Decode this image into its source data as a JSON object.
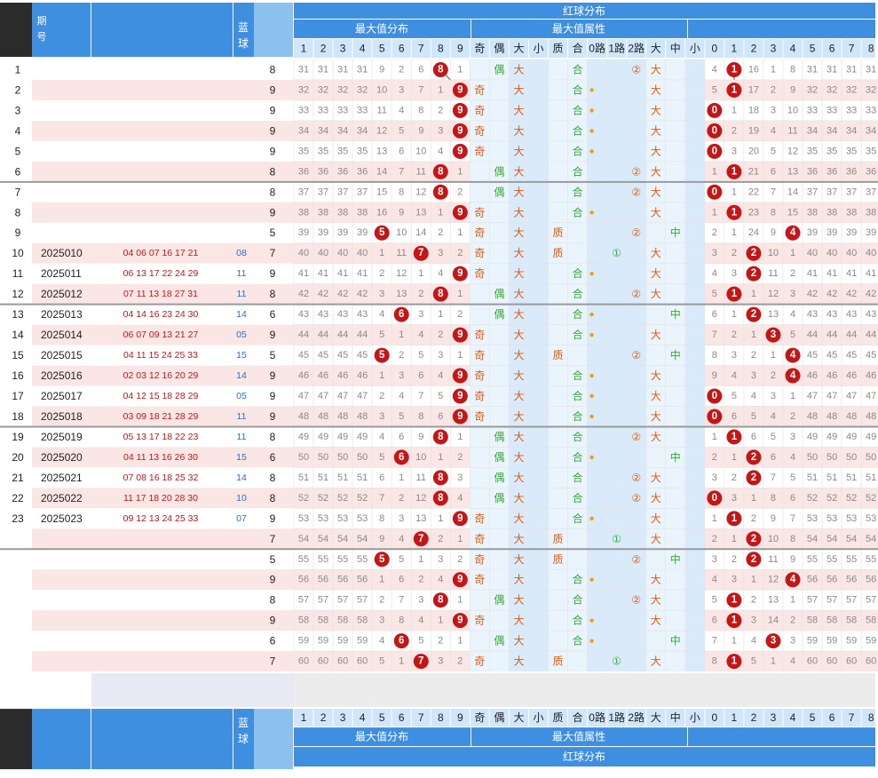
{
  "colors": {
    "header_dark": "#3f8fe0",
    "header_light": "#cfe6fb",
    "ball_red": "#c41616",
    "line_gray": "#8a8a8a",
    "odd_red": "#e05a10",
    "green": "#38a838"
  },
  "header": {
    "title": "红球分布",
    "groups": {
      "max_value": "最大值分布",
      "attributes": "最大值属性"
    },
    "blue_label": "蓝球",
    "period_label": "期号",
    "max_cols": [
      "1",
      "2",
      "3",
      "4",
      "5",
      "6",
      "7",
      "8",
      "9"
    ],
    "attr_cols": [
      "奇",
      "偶",
      "大",
      "小",
      "质",
      "合",
      "0路",
      "1路",
      "2路",
      "大",
      "中",
      "小"
    ],
    "dist_cols": [
      "0",
      "1",
      "2",
      "3",
      "4",
      "5",
      "6",
      "7",
      "8"
    ]
  },
  "attr_labels": {
    "odd": "奇",
    "even": "偶",
    "big": "大",
    "prime": "质",
    "composite": "合",
    "r1": "①",
    "r2": "②",
    "mid": "中"
  },
  "rows": [
    {
      "idx": "1",
      "period": "",
      "reds": "",
      "blue": "",
      "sum": "8",
      "miss": [
        31,
        31,
        31,
        31,
        9,
        2,
        6,
        8,
        1
      ],
      "max": 8,
      "attr": [
        0,
        1,
        1,
        0,
        0,
        1,
        0,
        0,
        1,
        1,
        0,
        0
      ],
      "dist": [
        4,
        1,
        16,
        1,
        8,
        31,
        31,
        31,
        31
      ],
      "dsel": 1
    },
    {
      "idx": "2",
      "period": "",
      "reds": "",
      "blue": "",
      "sum": "9",
      "miss": [
        32,
        32,
        32,
        32,
        10,
        3,
        7,
        1,
        9
      ],
      "max": 9,
      "attr": [
        1,
        0,
        1,
        0,
        0,
        1,
        1,
        0,
        0,
        1,
        0,
        0
      ],
      "dist": [
        5,
        1,
        17,
        2,
        9,
        32,
        32,
        32,
        32
      ],
      "dsel": 1
    },
    {
      "idx": "3",
      "period": "",
      "reds": "",
      "blue": "",
      "sum": "9",
      "miss": [
        33,
        33,
        33,
        33,
        11,
        4,
        8,
        2,
        9
      ],
      "max": 9,
      "attr": [
        1,
        0,
        1,
        0,
        0,
        1,
        1,
        0,
        0,
        1,
        0,
        0
      ],
      "dist": [
        0,
        1,
        18,
        3,
        10,
        33,
        33,
        33,
        33
      ],
      "dsel": 0
    },
    {
      "idx": "4",
      "period": "",
      "reds": "",
      "blue": "",
      "sum": "9",
      "miss": [
        34,
        34,
        34,
        34,
        12,
        5,
        9,
        3,
        9
      ],
      "max": 9,
      "attr": [
        1,
        0,
        1,
        0,
        0,
        1,
        1,
        0,
        0,
        1,
        0,
        0
      ],
      "dist": [
        0,
        2,
        19,
        4,
        11,
        34,
        34,
        34,
        34
      ],
      "dsel": 0
    },
    {
      "idx": "5",
      "period": "",
      "reds": "",
      "blue": "",
      "sum": "9",
      "miss": [
        35,
        35,
        35,
        35,
        13,
        6,
        10,
        4,
        9
      ],
      "max": 9,
      "attr": [
        1,
        0,
        1,
        0,
        0,
        1,
        1,
        0,
        0,
        1,
        0,
        0
      ],
      "dist": [
        0,
        3,
        20,
        5,
        12,
        35,
        35,
        35,
        35
      ],
      "dsel": 0
    },
    {
      "idx": "6",
      "period": "",
      "reds": "",
      "blue": "",
      "sum": "8",
      "miss": [
        36,
        36,
        36,
        36,
        14,
        7,
        11,
        8,
        1
      ],
      "max": 8,
      "attr": [
        0,
        1,
        1,
        0,
        0,
        1,
        0,
        0,
        1,
        1,
        0,
        0
      ],
      "dist": [
        1,
        1,
        21,
        6,
        13,
        36,
        36,
        36,
        36
      ],
      "dsel": 1
    },
    {
      "idx": "7",
      "period": "",
      "reds": "",
      "blue": "",
      "sum": "8",
      "miss": [
        37,
        37,
        37,
        37,
        15,
        8,
        12,
        8,
        2
      ],
      "max": 8,
      "attr": [
        0,
        1,
        1,
        0,
        0,
        1,
        0,
        0,
        1,
        1,
        0,
        0
      ],
      "dist": [
        0,
        1,
        22,
        7,
        14,
        37,
        37,
        37,
        37
      ],
      "dsel": 0
    },
    {
      "idx": "8",
      "period": "",
      "reds": "",
      "blue": "",
      "sum": "9",
      "miss": [
        38,
        38,
        38,
        38,
        16,
        9,
        13,
        1,
        9
      ],
      "max": 9,
      "attr": [
        1,
        0,
        1,
        0,
        0,
        1,
        1,
        0,
        0,
        1,
        0,
        0
      ],
      "dist": [
        1,
        1,
        23,
        8,
        15,
        38,
        38,
        38,
        38
      ],
      "dsel": 1
    },
    {
      "idx": "9",
      "period": "",
      "reds": "",
      "blue": "",
      "sum": "5",
      "miss": [
        39,
        39,
        39,
        39,
        5,
        10,
        14,
        2,
        1
      ],
      "max": 5,
      "attr": [
        1,
        0,
        1,
        0,
        1,
        0,
        0,
        0,
        1,
        0,
        1,
        0
      ],
      "dist": [
        2,
        1,
        24,
        9,
        4,
        39,
        39,
        39,
        39
      ],
      "dsel": 4
    },
    {
      "idx": "10",
      "period": "2025010",
      "reds": "04 06 07 16 17 21",
      "blue": "08",
      "sum": "7",
      "miss": [
        40,
        40,
        40,
        40,
        1,
        11,
        7,
        3,
        2
      ],
      "max": 7,
      "attr": [
        1,
        0,
        1,
        0,
        1,
        0,
        0,
        1,
        0,
        1,
        0,
        0
      ],
      "dist": [
        3,
        2,
        2,
        10,
        1,
        40,
        40,
        40,
        40
      ],
      "dsel": 2
    },
    {
      "idx": "11",
      "period": "2025011",
      "reds": "06 13 17 22 24 29",
      "blue": "11",
      "sum": "9",
      "miss": [
        41,
        41,
        41,
        41,
        2,
        12,
        1,
        4,
        9
      ],
      "max": 9,
      "attr": [
        1,
        0,
        1,
        0,
        0,
        1,
        1,
        0,
        0,
        1,
        0,
        0
      ],
      "dist": [
        4,
        3,
        2,
        11,
        2,
        41,
        41,
        41,
        41
      ],
      "dsel": 2
    },
    {
      "idx": "12",
      "period": "2025012",
      "reds": "07 11 13 18 27 31",
      "blue": "11",
      "sum": "8",
      "miss": [
        42,
        42,
        42,
        42,
        3,
        13,
        2,
        8,
        1
      ],
      "max": 8,
      "attr": [
        0,
        1,
        1,
        0,
        0,
        1,
        0,
        0,
        1,
        1,
        0,
        0
      ],
      "dist": [
        5,
        1,
        1,
        12,
        3,
        42,
        42,
        42,
        42
      ],
      "dsel": 1
    },
    {
      "idx": "13",
      "period": "2025013",
      "reds": "04 14 16 23 24 30",
      "blue": "14",
      "sum": "6",
      "miss": [
        43,
        43,
        43,
        43,
        4,
        6,
        3,
        1,
        2
      ],
      "max": 6,
      "attr": [
        0,
        1,
        1,
        0,
        0,
        1,
        1,
        0,
        0,
        0,
        1,
        0
      ],
      "dist": [
        6,
        1,
        2,
        13,
        4,
        43,
        43,
        43,
        43
      ],
      "dsel": 2
    },
    {
      "idx": "14",
      "period": "2025014",
      "reds": "06 07 09 13 21 27",
      "blue": "05",
      "sum": "9",
      "miss": [
        44,
        44,
        44,
        44,
        5,
        1,
        4,
        2,
        9
      ],
      "max": 9,
      "attr": [
        1,
        0,
        1,
        0,
        0,
        1,
        1,
        0,
        0,
        1,
        0,
        0
      ],
      "dist": [
        7,
        2,
        1,
        3,
        5,
        44,
        44,
        44,
        44
      ],
      "dsel": 3
    },
    {
      "idx": "15",
      "period": "2025015",
      "reds": "04 11 15 24 25 33",
      "blue": "15",
      "sum": "5",
      "miss": [
        45,
        45,
        45,
        45,
        5,
        2,
        5,
        3,
        1
      ],
      "max": 5,
      "attr": [
        1,
        0,
        1,
        0,
        1,
        0,
        0,
        0,
        1,
        0,
        1,
        0
      ],
      "dist": [
        8,
        3,
        2,
        1,
        4,
        45,
        45,
        45,
        45
      ],
      "dsel": 4
    },
    {
      "idx": "16",
      "period": "2025016",
      "reds": "02 03 12 16 20 29",
      "blue": "14",
      "sum": "9",
      "miss": [
        46,
        46,
        46,
        46,
        1,
        3,
        6,
        4,
        9
      ],
      "max": 9,
      "attr": [
        1,
        0,
        1,
        0,
        0,
        1,
        1,
        0,
        0,
        1,
        0,
        0
      ],
      "dist": [
        9,
        4,
        3,
        2,
        4,
        46,
        46,
        46,
        46
      ],
      "dsel": 4
    },
    {
      "idx": "17",
      "period": "2025017",
      "reds": "04 12 15 18 28 29",
      "blue": "05",
      "sum": "9",
      "miss": [
        47,
        47,
        47,
        47,
        2,
        4,
        7,
        5,
        9
      ],
      "max": 9,
      "attr": [
        1,
        0,
        1,
        0,
        0,
        1,
        1,
        0,
        0,
        1,
        0,
        0
      ],
      "dist": [
        0,
        5,
        4,
        3,
        1,
        47,
        47,
        47,
        47
      ],
      "dsel": 0
    },
    {
      "idx": "18",
      "period": "2025018",
      "reds": "03 09 18 21 28 29",
      "blue": "11",
      "sum": "9",
      "miss": [
        48,
        48,
        48,
        48,
        3,
        5,
        8,
        6,
        9
      ],
      "max": 9,
      "attr": [
        1,
        0,
        1,
        0,
        0,
        1,
        1,
        0,
        0,
        1,
        0,
        0
      ],
      "dist": [
        0,
        6,
        5,
        4,
        2,
        48,
        48,
        48,
        48
      ],
      "dsel": 0
    },
    {
      "idx": "19",
      "period": "2025019",
      "reds": "05 13 17 18 22 23",
      "blue": "11",
      "sum": "8",
      "miss": [
        49,
        49,
        49,
        49,
        4,
        6,
        9,
        8,
        1
      ],
      "max": 8,
      "attr": [
        0,
        1,
        1,
        0,
        0,
        1,
        0,
        0,
        1,
        1,
        0,
        0
      ],
      "dist": [
        1,
        1,
        6,
        5,
        3,
        49,
        49,
        49,
        49
      ],
      "dsel": 1
    },
    {
      "idx": "20",
      "period": "2025020",
      "reds": "04 11 13 16 26 30",
      "blue": "15",
      "sum": "6",
      "miss": [
        50,
        50,
        50,
        50,
        5,
        6,
        10,
        1,
        2
      ],
      "max": 6,
      "attr": [
        0,
        1,
        1,
        0,
        0,
        1,
        1,
        0,
        0,
        0,
        1,
        0
      ],
      "dist": [
        2,
        1,
        2,
        6,
        4,
        50,
        50,
        50,
        50
      ],
      "dsel": 2
    },
    {
      "idx": "21",
      "period": "2025021",
      "reds": "07 08 16 18 25 32",
      "blue": "14",
      "sum": "8",
      "miss": [
        51,
        51,
        51,
        51,
        6,
        1,
        11,
        8,
        3
      ],
      "max": 8,
      "attr": [
        0,
        1,
        1,
        0,
        0,
        1,
        0,
        0,
        1,
        1,
        0,
        0
      ],
      "dist": [
        3,
        2,
        2,
        7,
        5,
        51,
        51,
        51,
        51
      ],
      "dsel": 2
    },
    {
      "idx": "22",
      "period": "2025022",
      "reds": "11 17 18 20 28 30",
      "blue": "10",
      "sum": "8",
      "miss": [
        52,
        52,
        52,
        52,
        7,
        2,
        12,
        8,
        4
      ],
      "max": 8,
      "attr": [
        0,
        1,
        1,
        0,
        0,
        1,
        0,
        0,
        1,
        1,
        0,
        0
      ],
      "dist": [
        0,
        3,
        1,
        8,
        6,
        52,
        52,
        52,
        52
      ],
      "dsel": 0
    },
    {
      "idx": "23",
      "period": "2025023",
      "reds": "09 12 13 24 25 33",
      "blue": "07",
      "sum": "9",
      "miss": [
        53,
        53,
        53,
        53,
        8,
        3,
        13,
        1,
        9
      ],
      "max": 9,
      "attr": [
        1,
        0,
        1,
        0,
        0,
        1,
        1,
        0,
        0,
        1,
        0,
        0
      ],
      "dist": [
        1,
        1,
        2,
        9,
        7,
        53,
        53,
        53,
        53
      ],
      "dsel": 1
    },
    {
      "idx": "",
      "period": "",
      "reds": "",
      "blue": "",
      "sum": "7",
      "miss": [
        54,
        54,
        54,
        54,
        9,
        4,
        7,
        2,
        1
      ],
      "max": 7,
      "attr": [
        1,
        0,
        1,
        0,
        1,
        0,
        0,
        1,
        0,
        1,
        0,
        0
      ],
      "dist": [
        2,
        1,
        2,
        10,
        8,
        54,
        54,
        54,
        54
      ],
      "dsel": 2
    },
    {
      "idx": "",
      "period": "",
      "reds": "",
      "blue": "",
      "sum": "5",
      "miss": [
        55,
        55,
        55,
        55,
        5,
        5,
        1,
        3,
        2
      ],
      "max": 5,
      "attr": [
        1,
        0,
        1,
        0,
        1,
        0,
        0,
        0,
        1,
        0,
        1,
        0
      ],
      "dist": [
        3,
        2,
        2,
        11,
        9,
        55,
        55,
        55,
        55
      ],
      "dsel": 2
    },
    {
      "idx": "",
      "period": "",
      "reds": "",
      "blue": "",
      "sum": "9",
      "miss": [
        56,
        56,
        56,
        56,
        1,
        6,
        2,
        4,
        9
      ],
      "max": 9,
      "attr": [
        1,
        0,
        1,
        0,
        0,
        1,
        1,
        0,
        0,
        1,
        0,
        0
      ],
      "dist": [
        4,
        3,
        1,
        12,
        4,
        56,
        56,
        56,
        56
      ],
      "dsel": 4
    },
    {
      "idx": "",
      "period": "",
      "reds": "",
      "blue": "",
      "sum": "8",
      "miss": [
        57,
        57,
        57,
        57,
        2,
        7,
        3,
        8,
        1
      ],
      "max": 8,
      "attr": [
        0,
        1,
        1,
        0,
        0,
        1,
        0,
        0,
        1,
        1,
        0,
        0
      ],
      "dist": [
        5,
        1,
        2,
        13,
        1,
        57,
        57,
        57,
        57
      ],
      "dsel": 1
    },
    {
      "idx": "",
      "period": "",
      "reds": "",
      "blue": "",
      "sum": "9",
      "miss": [
        58,
        58,
        58,
        58,
        3,
        8,
        4,
        1,
        9
      ],
      "max": 9,
      "attr": [
        1,
        0,
        1,
        0,
        0,
        1,
        1,
        0,
        0,
        1,
        0,
        0
      ],
      "dist": [
        6,
        1,
        3,
        14,
        2,
        58,
        58,
        58,
        58
      ],
      "dsel": 1
    },
    {
      "idx": "",
      "period": "",
      "reds": "",
      "blue": "",
      "sum": "6",
      "miss": [
        59,
        59,
        59,
        59,
        4,
        6,
        5,
        2,
        1
      ],
      "max": 6,
      "attr": [
        0,
        1,
        1,
        0,
        0,
        1,
        1,
        0,
        0,
        0,
        1,
        0
      ],
      "dist": [
        7,
        1,
        4,
        3,
        3,
        59,
        59,
        59,
        59
      ],
      "dsel": 3
    },
    {
      "idx": "",
      "period": "",
      "reds": "",
      "blue": "",
      "sum": "7",
      "miss": [
        60,
        60,
        60,
        60,
        5,
        1,
        7,
        3,
        2
      ],
      "max": 7,
      "attr": [
        1,
        0,
        1,
        0,
        1,
        0,
        0,
        1,
        0,
        1,
        0,
        0
      ],
      "dist": [
        8,
        1,
        5,
        1,
        4,
        60,
        60,
        60,
        60
      ],
      "dsel": 1
    }
  ]
}
